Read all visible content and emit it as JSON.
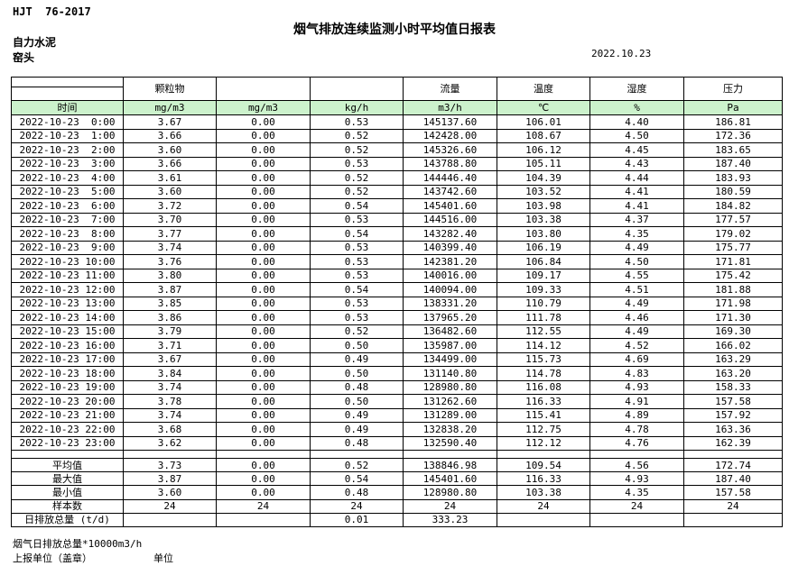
{
  "meta": {
    "standard": "HJT  76-2017",
    "title": "烟气排放连续监测小时平均值日报表",
    "company": "自力水泥",
    "location": "窑头",
    "date": "2022.10.23"
  },
  "table": {
    "time_header": "时间",
    "group_headers": [
      "颗粒物",
      "",
      "",
      "流量",
      "温度",
      "湿度",
      "压力"
    ],
    "units": [
      "mg/m3",
      "mg/m3",
      "kg/h",
      "m3/h",
      "℃",
      "%",
      "Pa"
    ],
    "rows": [
      {
        "time": "2022-10-23  0:00",
        "values": [
          "3.67",
          "0.00",
          "0.53",
          "145137.60",
          "106.01",
          "4.40",
          "186.81"
        ]
      },
      {
        "time": "2022-10-23  1:00",
        "values": [
          "3.66",
          "0.00",
          "0.52",
          "142428.00",
          "108.67",
          "4.50",
          "172.36"
        ]
      },
      {
        "time": "2022-10-23  2:00",
        "values": [
          "3.60",
          "0.00",
          "0.52",
          "145326.60",
          "106.12",
          "4.45",
          "183.65"
        ]
      },
      {
        "time": "2022-10-23  3:00",
        "values": [
          "3.66",
          "0.00",
          "0.53",
          "143788.80",
          "105.11",
          "4.43",
          "187.40"
        ]
      },
      {
        "time": "2022-10-23  4:00",
        "values": [
          "3.61",
          "0.00",
          "0.52",
          "144446.40",
          "104.39",
          "4.44",
          "183.93"
        ]
      },
      {
        "time": "2022-10-23  5:00",
        "values": [
          "3.60",
          "0.00",
          "0.52",
          "143742.60",
          "103.52",
          "4.41",
          "180.59"
        ]
      },
      {
        "time": "2022-10-23  6:00",
        "values": [
          "3.72",
          "0.00",
          "0.54",
          "145401.60",
          "103.98",
          "4.41",
          "184.82"
        ]
      },
      {
        "time": "2022-10-23  7:00",
        "values": [
          "3.70",
          "0.00",
          "0.53",
          "144516.00",
          "103.38",
          "4.37",
          "177.57"
        ]
      },
      {
        "time": "2022-10-23  8:00",
        "values": [
          "3.77",
          "0.00",
          "0.54",
          "143282.40",
          "103.80",
          "4.35",
          "179.02"
        ]
      },
      {
        "time": "2022-10-23  9:00",
        "values": [
          "3.74",
          "0.00",
          "0.53",
          "140399.40",
          "106.19",
          "4.49",
          "175.77"
        ]
      },
      {
        "time": "2022-10-23 10:00",
        "values": [
          "3.76",
          "0.00",
          "0.53",
          "142381.20",
          "106.84",
          "4.50",
          "171.81"
        ]
      },
      {
        "time": "2022-10-23 11:00",
        "values": [
          "3.80",
          "0.00",
          "0.53",
          "140016.00",
          "109.17",
          "4.55",
          "175.42"
        ]
      },
      {
        "time": "2022-10-23 12:00",
        "values": [
          "3.87",
          "0.00",
          "0.54",
          "140094.00",
          "109.33",
          "4.51",
          "181.88"
        ]
      },
      {
        "time": "2022-10-23 13:00",
        "values": [
          "3.85",
          "0.00",
          "0.53",
          "138331.20",
          "110.79",
          "4.49",
          "171.98"
        ]
      },
      {
        "time": "2022-10-23 14:00",
        "values": [
          "3.86",
          "0.00",
          "0.53",
          "137965.20",
          "111.78",
          "4.46",
          "171.30"
        ]
      },
      {
        "time": "2022-10-23 15:00",
        "values": [
          "3.79",
          "0.00",
          "0.52",
          "136482.60",
          "112.55",
          "4.49",
          "169.30"
        ]
      },
      {
        "time": "2022-10-23 16:00",
        "values": [
          "3.71",
          "0.00",
          "0.50",
          "135987.00",
          "114.12",
          "4.52",
          "166.02"
        ]
      },
      {
        "time": "2022-10-23 17:00",
        "values": [
          "3.67",
          "0.00",
          "0.49",
          "134499.00",
          "115.73",
          "4.69",
          "163.29"
        ]
      },
      {
        "time": "2022-10-23 18:00",
        "values": [
          "3.84",
          "0.00",
          "0.50",
          "131140.80",
          "114.78",
          "4.83",
          "163.20"
        ]
      },
      {
        "time": "2022-10-23 19:00",
        "values": [
          "3.74",
          "0.00",
          "0.48",
          "128980.80",
          "116.08",
          "4.93",
          "158.33"
        ]
      },
      {
        "time": "2022-10-23 20:00",
        "values": [
          "3.78",
          "0.00",
          "0.50",
          "131262.60",
          "116.33",
          "4.91",
          "157.58"
        ]
      },
      {
        "time": "2022-10-23 21:00",
        "values": [
          "3.74",
          "0.00",
          "0.49",
          "131289.00",
          "115.41",
          "4.89",
          "157.92"
        ]
      },
      {
        "time": "2022-10-23 22:00",
        "values": [
          "3.68",
          "0.00",
          "0.49",
          "132838.20",
          "112.75",
          "4.78",
          "163.36"
        ]
      },
      {
        "time": "2022-10-23 23:00",
        "values": [
          "3.62",
          "0.00",
          "0.48",
          "132590.40",
          "112.12",
          "4.76",
          "162.39"
        ]
      }
    ],
    "summary": [
      {
        "label": "平均值",
        "values": [
          "3.73",
          "0.00",
          "0.52",
          "138846.98",
          "109.54",
          "4.56",
          "172.74"
        ]
      },
      {
        "label": "最大值",
        "values": [
          "3.87",
          "0.00",
          "0.54",
          "145401.60",
          "116.33",
          "4.93",
          "187.40"
        ]
      },
      {
        "label": "最小值",
        "values": [
          "3.60",
          "0.00",
          "0.48",
          "128980.80",
          "103.38",
          "4.35",
          "157.58"
        ]
      },
      {
        "label": "样本数",
        "values": [
          "24",
          "24",
          "24",
          "24",
          "24",
          "24",
          "24"
        ]
      },
      {
        "label": "日排放总量 (t/d)",
        "values": [
          "",
          "",
          "0.01",
          "333.23",
          "",
          "",
          ""
        ]
      }
    ]
  },
  "footer": {
    "note": "烟气日排放总量*10000m3/h",
    "report_unit_label": "上报单位（盖章）",
    "unit_label": "单位"
  },
  "colors": {
    "header_row_green": "#ccf2cc",
    "border": "#000000",
    "text": "#000000"
  }
}
